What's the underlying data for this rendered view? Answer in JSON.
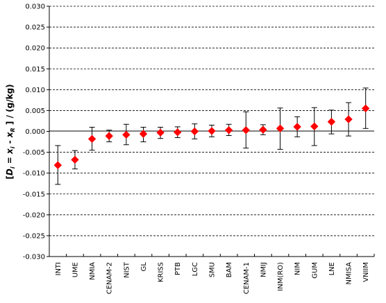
{
  "chart_data": {
    "type": "scatter",
    "ylabel_parts": {
      "open": "[",
      "d": "D",
      "d_sub": "i",
      "eq": " = ",
      "x1": "x",
      "x1_sub": "i",
      "minus": " - ",
      "x2": "x",
      "x2_sub": "R",
      "close": " ] / (g/kg)"
    },
    "ylim": [
      -0.03,
      0.03
    ],
    "yticks": [
      "0.030",
      "0.025",
      "0.020",
      "0.015",
      "0.010",
      "0.005",
      "0.000",
      "-0.005",
      "-0.010",
      "-0.015",
      "-0.020",
      "-0.025",
      "-0.030"
    ],
    "ytick_values": [
      0.03,
      0.025,
      0.02,
      0.015,
      0.01,
      0.005,
      0.0,
      -0.005,
      -0.01,
      -0.015,
      -0.02,
      -0.025,
      -0.03
    ],
    "grid": "horizontal dashed",
    "marker_color": "#ff0000",
    "categories": [
      "INTI",
      "UME",
      "NMIA",
      "CENAM-2",
      "NIST",
      "GL",
      "KRISS",
      "PTB",
      "LGC",
      "SMU",
      "BAM",
      "CENAM-1",
      "NMIJ",
      "INM(RO)",
      "NIM",
      "GUM",
      "LNE",
      "NMISA",
      "VNIIM"
    ],
    "values": [
      -0.0081,
      -0.0068,
      -0.0018,
      -0.0011,
      -0.0008,
      -0.0006,
      -0.0003,
      -0.0002,
      0.0,
      0.0001,
      0.0003,
      0.0003,
      0.0004,
      0.0007,
      0.0011,
      0.0012,
      0.0023,
      0.0029,
      0.0055
    ],
    "err_low": [
      -0.0127,
      -0.009,
      -0.0045,
      -0.0025,
      -0.0032,
      -0.0025,
      -0.0017,
      -0.0015,
      -0.0018,
      -0.0013,
      -0.001,
      -0.004,
      -0.0008,
      -0.0043,
      -0.0013,
      -0.0034,
      -0.0006,
      -0.0011,
      0.0007
    ],
    "err_high": [
      -0.0034,
      -0.0046,
      0.001,
      0.0003,
      0.0017,
      0.001,
      0.001,
      0.0011,
      0.0018,
      0.0015,
      0.0017,
      0.0047,
      0.0016,
      0.0056,
      0.0035,
      0.0057,
      0.0051,
      0.0069,
      0.0104
    ]
  }
}
